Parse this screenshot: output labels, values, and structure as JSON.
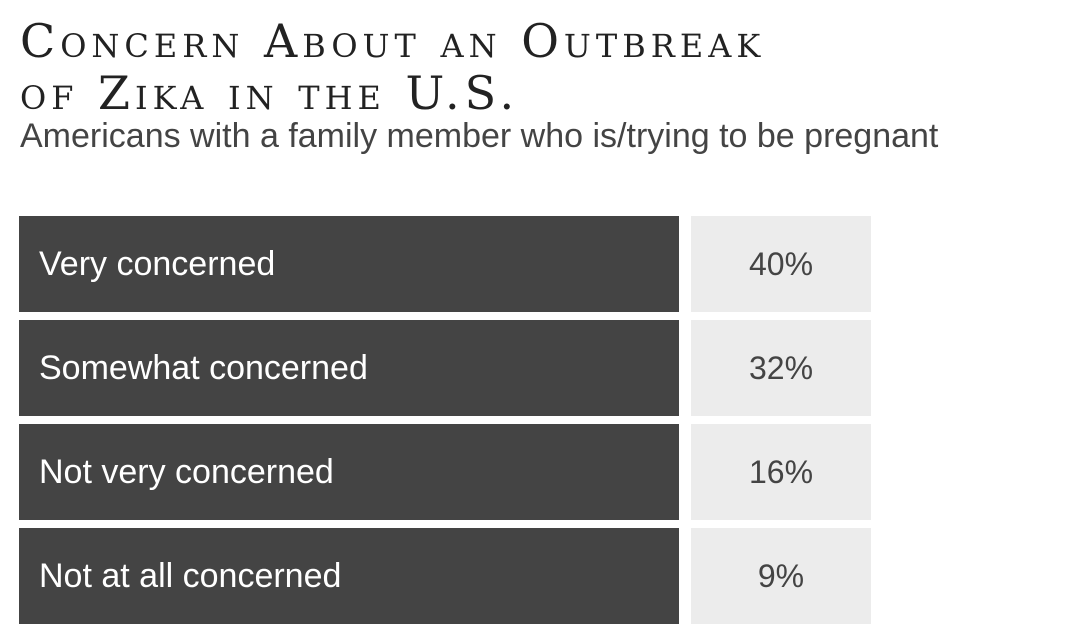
{
  "chart_data": {
    "type": "table",
    "title_lines": [
      "Concern About an Outbreak",
      "of Zika in the U.S."
    ],
    "subtitle": "Americans with a family member who is/trying to be pregnant",
    "categories": [
      "Very concerned",
      "Somewhat concerned",
      "Not very concerned",
      "Not at all concerned"
    ],
    "values": [
      40,
      32,
      16,
      9
    ],
    "value_labels": [
      "40%",
      "32%",
      "16%",
      "9%"
    ],
    "colors": {
      "label_background": "#444444",
      "value_background": "#ececec",
      "label_text": "#ffffff",
      "value_text": "#444444"
    }
  }
}
